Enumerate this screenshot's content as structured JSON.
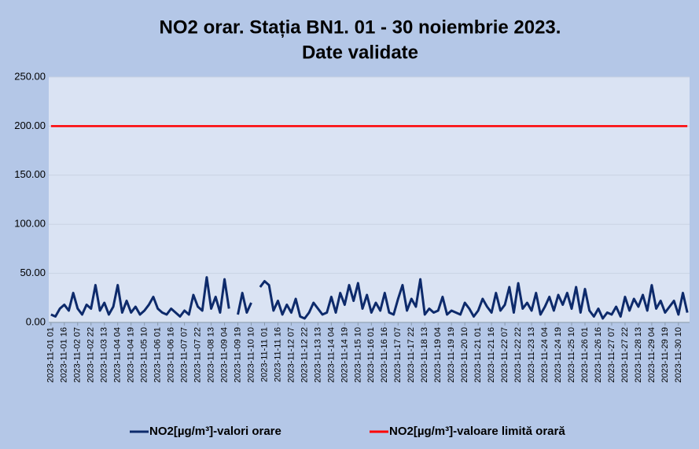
{
  "chart_data": {
    "type": "line",
    "title": [
      "NO2 orar. Stația BN1. 01 - 30 noiembrie 2023.",
      "Date validate"
    ],
    "categories": [
      "2023-11-01 01",
      null,
      null,
      "2023-11-01 16",
      null,
      null,
      "2023-11-02 07",
      null,
      null,
      "2023-11-02 22",
      null,
      null,
      "2023-11-03 13",
      null,
      null,
      "2023-11-04 04",
      null,
      null,
      "2023-11-04 19",
      null,
      null,
      "2023-11-05 10",
      null,
      null,
      "2023-11-06 01",
      null,
      null,
      "2023-11-06 16",
      null,
      null,
      "2023-11-07 07",
      null,
      null,
      "2023-11-07 22",
      null,
      null,
      "2023-11-08 13",
      null,
      null,
      "2023-11-09 04",
      null,
      null,
      "2023-11-09 19",
      null,
      null,
      "2023-11-10 10",
      null,
      null,
      "2023-11-11 01",
      null,
      null,
      "2023-11-11 16",
      null,
      null,
      "2023-11-12 07",
      null,
      null,
      "2023-11-12 22",
      null,
      null,
      "2023-11-13 13",
      null,
      null,
      "2023-11-14 04",
      null,
      null,
      "2023-11-14 19",
      null,
      null,
      "2023-11-15 10",
      null,
      null,
      "2023-11-16 01",
      null,
      null,
      "2023-11-16 16",
      null,
      null,
      "2023-11-17 07",
      null,
      null,
      "2023-11-17 22",
      null,
      null,
      "2023-11-18 13",
      null,
      null,
      "2023-11-19 04",
      null,
      null,
      "2023-11-19 19",
      null,
      null,
      "2023-11-20 10",
      null,
      null,
      "2023-11-21 01",
      null,
      null,
      "2023-11-21 16",
      null,
      null,
      "2023-11-22 07",
      null,
      null,
      "2023-11-22 22",
      null,
      null,
      "2023-11-23 13",
      null,
      null,
      "2023-11-24 04",
      null,
      null,
      "2023-11-24 19",
      null,
      null,
      "2023-11-25 10",
      null,
      null,
      "2023-11-26 01",
      null,
      null,
      "2023-11-26 16",
      null,
      null,
      "2023-11-27 07",
      null,
      null,
      "2023-11-27 22",
      null,
      null,
      "2023-11-28 13",
      null,
      null,
      "2023-11-29 04",
      null,
      null,
      "2023-11-29 19",
      null,
      null,
      "2023-11-30 10",
      null,
      null
    ],
    "series": [
      {
        "name": "NO2[µg/m³]-valori orare",
        "color": "#0d2a6b",
        "values": [
          8,
          6,
          14,
          18,
          12,
          30,
          14,
          8,
          18,
          14,
          38,
          12,
          20,
          8,
          16,
          38,
          10,
          22,
          10,
          16,
          8,
          12,
          18,
          26,
          14,
          10,
          8,
          14,
          10,
          6,
          12,
          8,
          28,
          16,
          12,
          46,
          14,
          26,
          10,
          44,
          14,
          null,
          8,
          30,
          10,
          20,
          null,
          36,
          42,
          38,
          12,
          22,
          8,
          18,
          10,
          24,
          6,
          4,
          10,
          20,
          14,
          8,
          10,
          26,
          10,
          30,
          18,
          38,
          22,
          40,
          14,
          28,
          10,
          20,
          12,
          30,
          10,
          8,
          24,
          38,
          12,
          24,
          16,
          44,
          8,
          14,
          10,
          12,
          26,
          8,
          12,
          10,
          8,
          20,
          14,
          6,
          12,
          24,
          16,
          10,
          30,
          12,
          18,
          36,
          10,
          40,
          14,
          20,
          12,
          30,
          8,
          16,
          26,
          12,
          28,
          18,
          30,
          14,
          36,
          10,
          34,
          12,
          6,
          14,
          4,
          10,
          8,
          16,
          6,
          26,
          12,
          24,
          16,
          28,
          12,
          38,
          14,
          22,
          10,
          16,
          22,
          8,
          30,
          10
        ]
      },
      {
        "name": "NO2[µg/m³]-valoare limită orară",
        "color": "#ff0000",
        "values": [
          200,
          200,
          200,
          200,
          200,
          200,
          200,
          200,
          200,
          200,
          200,
          200,
          200,
          200,
          200,
          200,
          200,
          200,
          200,
          200,
          200,
          200,
          200,
          200,
          200,
          200,
          200,
          200,
          200,
          200,
          200,
          200,
          200,
          200,
          200,
          200,
          200,
          200,
          200,
          200,
          200,
          200,
          200,
          200,
          200,
          200,
          200,
          200,
          200,
          200,
          200,
          200,
          200,
          200,
          200,
          200,
          200,
          200,
          200,
          200,
          200,
          200,
          200,
          200,
          200,
          200,
          200,
          200,
          200,
          200,
          200,
          200,
          200,
          200,
          200,
          200,
          200,
          200,
          200,
          200,
          200,
          200,
          200,
          200,
          200,
          200,
          200,
          200,
          200,
          200,
          200,
          200,
          200,
          200,
          200,
          200,
          200,
          200,
          200,
          200,
          200,
          200,
          200,
          200,
          200,
          200,
          200,
          200,
          200,
          200,
          200,
          200,
          200,
          200,
          200,
          200,
          200,
          200,
          200,
          200,
          200,
          200,
          200,
          200,
          200,
          200,
          200,
          200,
          200,
          200,
          200,
          200,
          200,
          200,
          200,
          200,
          200,
          200,
          200,
          200,
          200,
          200,
          200,
          200
        ]
      }
    ],
    "ylim": [
      0,
      250
    ],
    "yticks": [
      {
        "value": 0,
        "label": "0.00"
      },
      {
        "value": 50,
        "label": "50.00"
      },
      {
        "value": 100,
        "label": "100.00"
      },
      {
        "value": 150,
        "label": "150.00"
      },
      {
        "value": 200,
        "label": "200.00"
      },
      {
        "value": 250,
        "label": "250.00"
      }
    ],
    "grid": true,
    "legend": "bottom"
  }
}
